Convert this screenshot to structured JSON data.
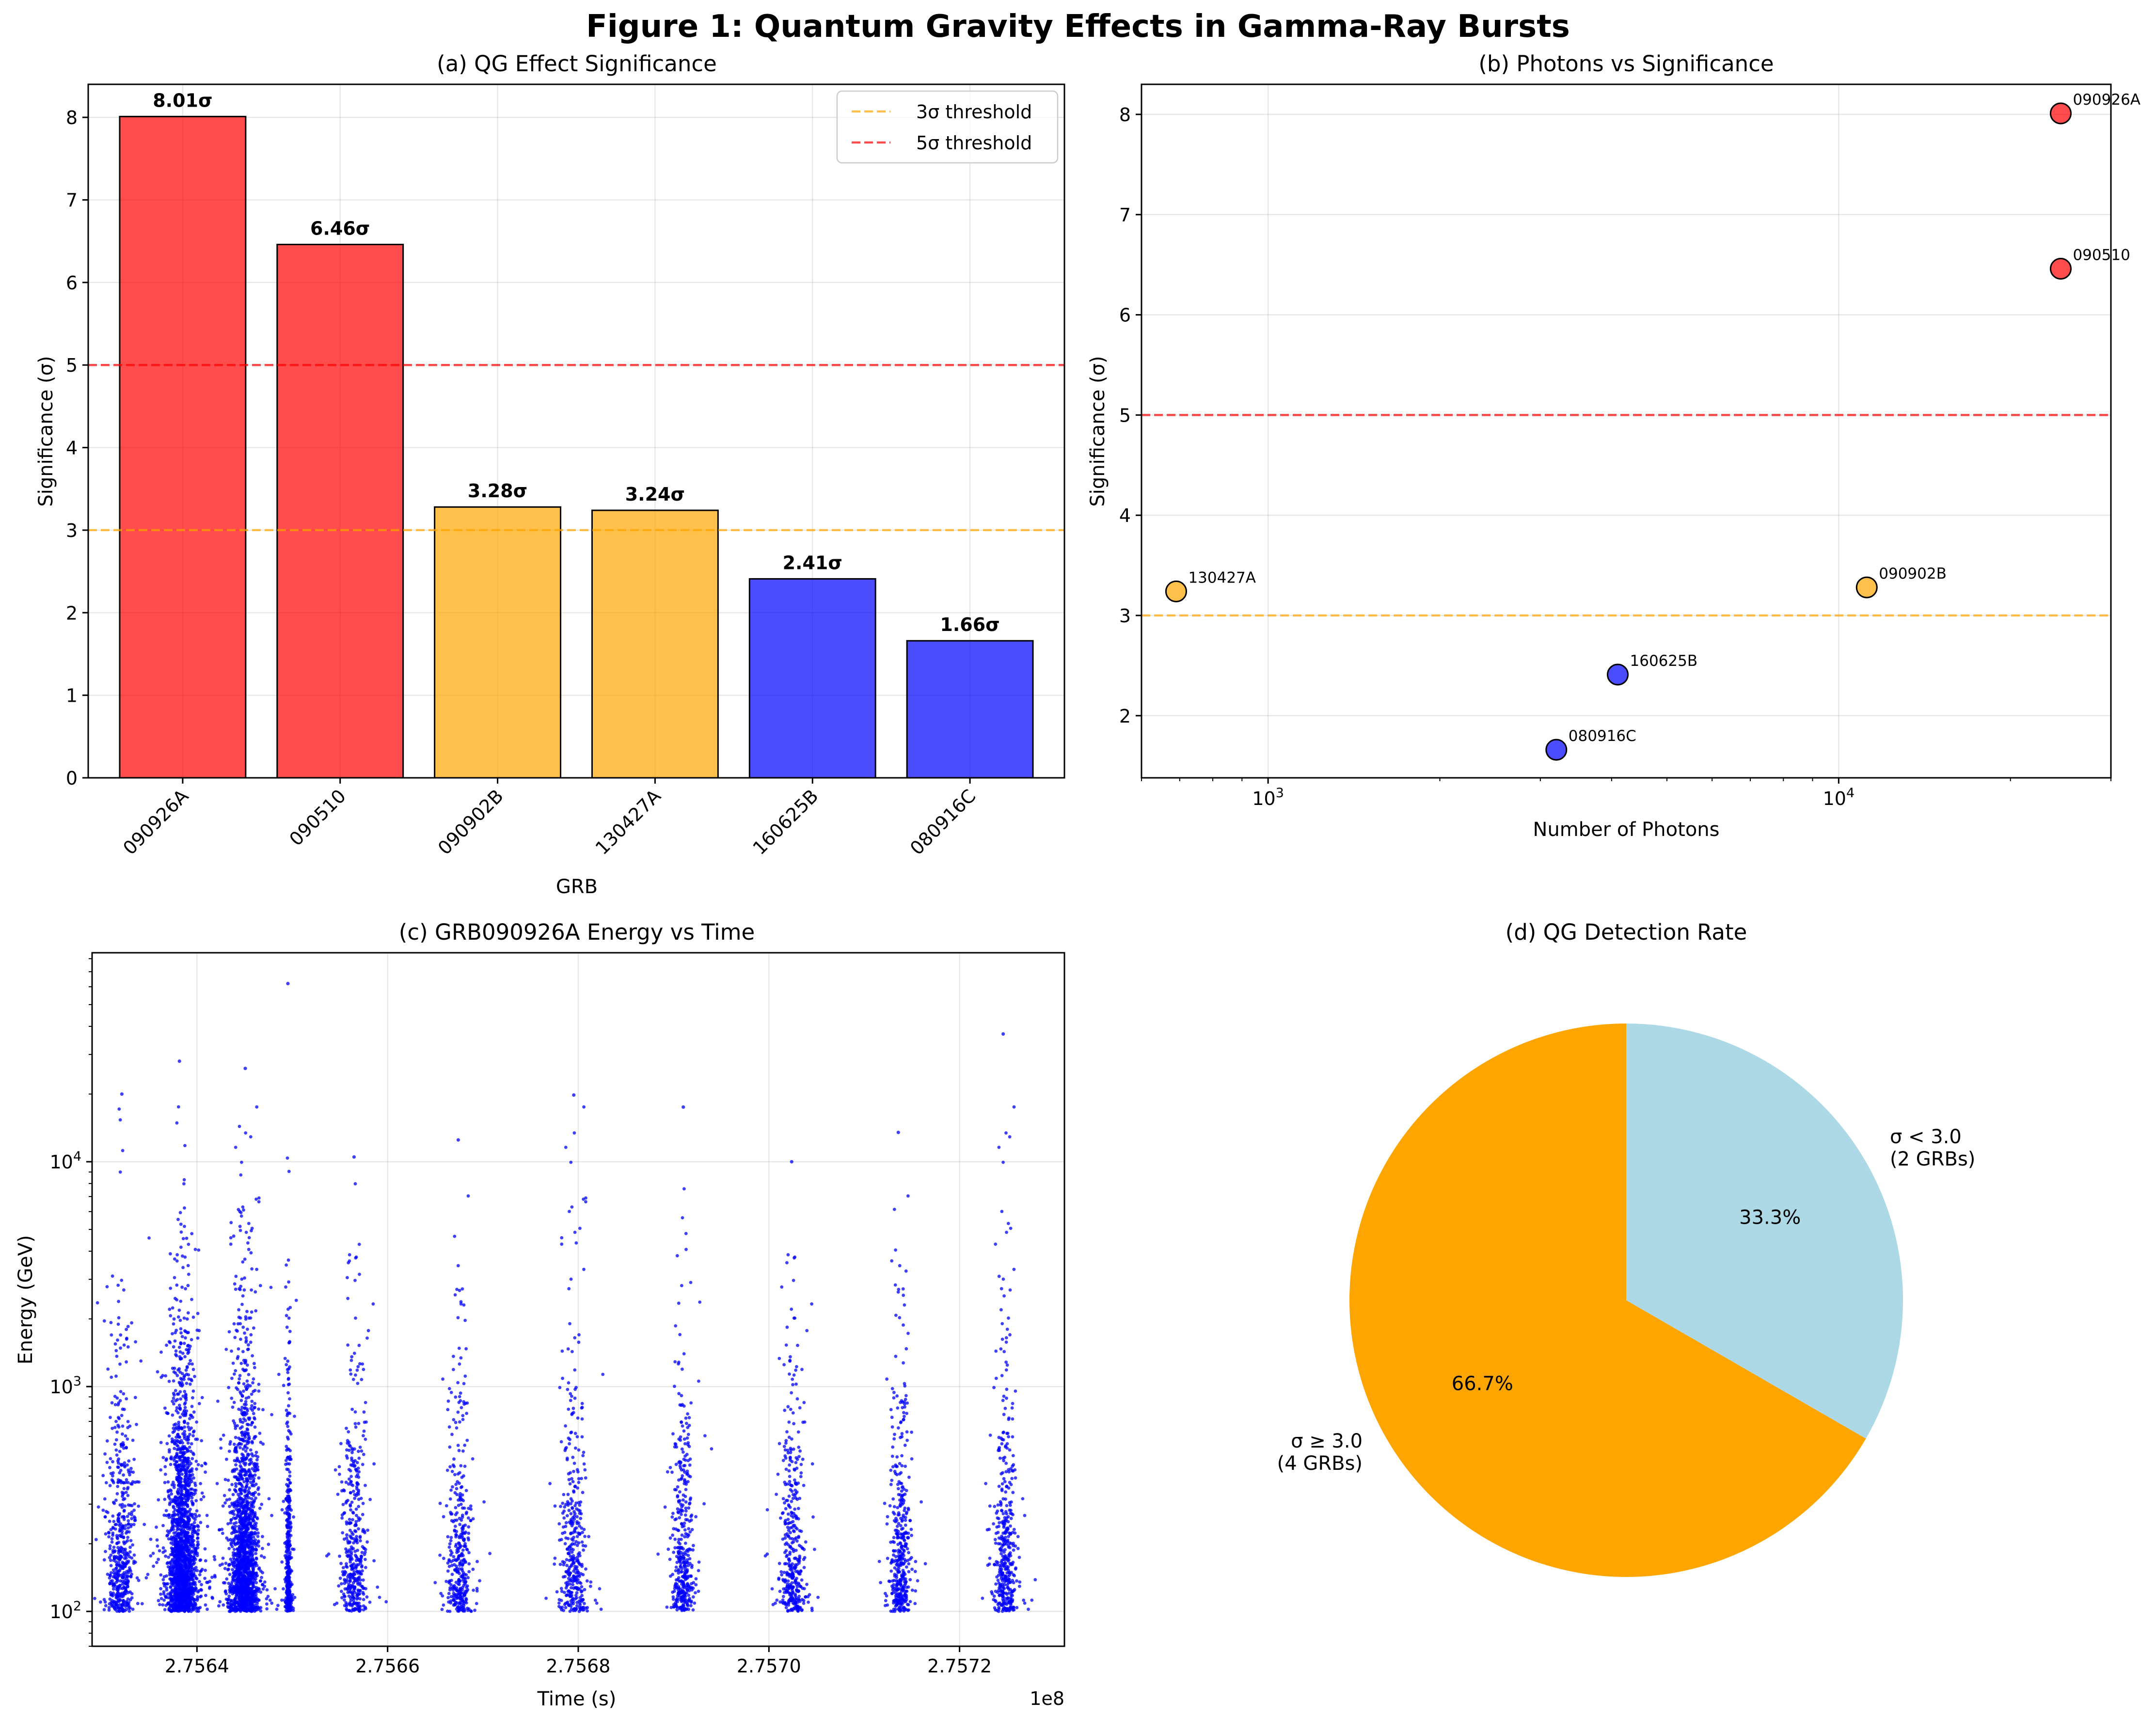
{
  "title": "Figure 1: Quantum Gravity Effects in Gamma-Ray Bursts",
  "colors": {
    "red": "#ff0000",
    "orange": "#ffa500",
    "blue": "#0000ff",
    "lightblue": "#add8e6"
  },
  "chart_data": [
    {
      "id": "a",
      "type": "bar",
      "title": "(a) QG Effect Significance",
      "xlabel": "GRB",
      "ylabel": "Significance (σ)",
      "ylim": [
        0,
        8.4
      ],
      "yticks": [
        "0",
        "1",
        "2",
        "3",
        "4",
        "5",
        "6",
        "7",
        "8"
      ],
      "categories": [
        "090926A",
        "090510",
        "090902B",
        "130427A",
        "160625B",
        "080916C"
      ],
      "values": [
        8.01,
        6.46,
        3.28,
        3.24,
        2.41,
        1.66
      ],
      "value_labels": [
        "8.01σ",
        "6.46σ",
        "3.28σ",
        "3.24σ",
        "2.41σ",
        "1.66σ"
      ],
      "bar_colors": [
        "red",
        "red",
        "orange",
        "orange",
        "blue",
        "blue"
      ],
      "thresholds": [
        {
          "value": 3,
          "color": "orange",
          "label": "3σ threshold"
        },
        {
          "value": 5,
          "color": "red",
          "label": "5σ threshold"
        }
      ],
      "legend": "top-right",
      "grid": true
    },
    {
      "id": "b",
      "type": "scatter",
      "title": "(b) Photons vs Significance",
      "xlabel": "Number of Photons",
      "ylabel": "Significance (σ)",
      "xscale": "log",
      "xlim": [
        600,
        30000
      ],
      "ylim": [
        1.38,
        8.3
      ],
      "yticks": [
        "2",
        "3",
        "4",
        "5",
        "6",
        "7",
        "8"
      ],
      "xticks": [
        {
          "base": "10",
          "exp": "3",
          "value": 1000
        },
        {
          "base": "10",
          "exp": "4",
          "value": 10000
        }
      ],
      "points": [
        {
          "label": "090926A",
          "x": 24500,
          "y": 8.01,
          "color": "red"
        },
        {
          "label": "090510",
          "x": 24500,
          "y": 6.46,
          "color": "red"
        },
        {
          "label": "090902B",
          "x": 11200,
          "y": 3.28,
          "color": "orange"
        },
        {
          "label": "130427A",
          "x": 690,
          "y": 3.24,
          "color": "orange"
        },
        {
          "label": "160625B",
          "x": 4100,
          "y": 2.41,
          "color": "blue"
        },
        {
          "label": "080916C",
          "x": 3200,
          "y": 1.66,
          "color": "blue"
        }
      ],
      "thresholds": [
        {
          "value": 3,
          "color": "orange"
        },
        {
          "value": 5,
          "color": "red"
        }
      ],
      "grid": true
    },
    {
      "id": "c",
      "type": "scatter",
      "title": "(c) GRB090926A Energy vs Time",
      "xlabel": "Time (s)",
      "ylabel": "Energy (GeV)",
      "yscale": "log",
      "xlim": [
        275629000,
        275731000
      ],
      "ylim": [
        70,
        85000
      ],
      "x_offset_label": "1e8",
      "xticks": [
        "2.7564",
        "2.7566",
        "2.7568",
        "2.7570",
        "2.7572"
      ],
      "xtick_values": [
        275640000,
        275660000,
        275680000,
        275700000,
        275720000
      ],
      "yticks": [
        {
          "base": "10",
          "exp": "2",
          "value": 100
        },
        {
          "base": "10",
          "exp": "3",
          "value": 1000
        },
        {
          "base": "10",
          "exp": "4",
          "value": 10000
        }
      ],
      "clusters": [
        {
          "t": 275632000,
          "spread": 700,
          "n": 550,
          "emax": 20000
        },
        {
          "t": 275638500,
          "spread": 700,
          "n": 1900,
          "emax": 28000
        },
        {
          "t": 275645000,
          "spread": 700,
          "n": 1700,
          "emax": 26000
        },
        {
          "t": 275649600,
          "spread": 150,
          "n": 380,
          "emax": 62000
        },
        {
          "t": 275656500,
          "spread": 600,
          "n": 420,
          "emax": 10500
        },
        {
          "t": 275667500,
          "spread": 600,
          "n": 380,
          "emax": 12500
        },
        {
          "t": 275679500,
          "spread": 600,
          "n": 380,
          "emax": 19800
        },
        {
          "t": 275691000,
          "spread": 500,
          "n": 400,
          "emax": 17500
        },
        {
          "t": 275702500,
          "spread": 600,
          "n": 400,
          "emax": 10000
        },
        {
          "t": 275713800,
          "spread": 500,
          "n": 420,
          "emax": 13500
        },
        {
          "t": 275724800,
          "spread": 500,
          "n": 420,
          "emax": 37000
        }
      ],
      "grid": true
    },
    {
      "id": "d",
      "type": "pie",
      "title": "(d) QG Detection Rate",
      "slices": [
        {
          "label": "σ ≥ 3.0\n(4 GRBs)",
          "value": 4,
          "pct": "66.7%",
          "color": "orange"
        },
        {
          "label": "σ < 3.0\n(2 GRBs)",
          "value": 2,
          "pct": "33.3%",
          "color": "lightblue"
        }
      ]
    }
  ]
}
